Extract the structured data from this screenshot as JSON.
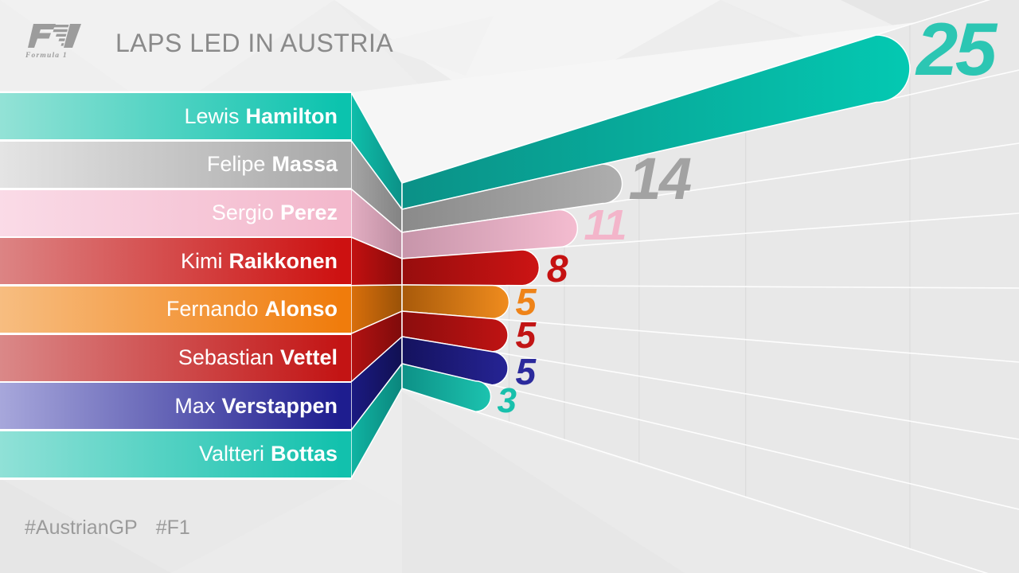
{
  "header": {
    "title": "LAPS LED IN AUSTRIA",
    "logo": "F1",
    "logo_caption": "Formula 1"
  },
  "footer": {
    "tag1": "#AustrianGP",
    "tag2": "#F1"
  },
  "wall": {
    "background": "#e8e8e8",
    "gridline_color": "#dcdcdc",
    "separator_color": "#ffffff"
  },
  "chart_data": {
    "type": "bar",
    "title": "LAPS LED IN AUSTRIA",
    "orientation": "horizontal",
    "style": "3d-perspective-wall",
    "categories": [
      "Lewis Hamilton",
      "Felipe Massa",
      "Sergio Perez",
      "Kimi Raikkonen",
      "Fernando Alonso",
      "Sebastian Vettel",
      "Max Verstappen",
      "Valtteri Bottas"
    ],
    "values": [
      25,
      14,
      11,
      8,
      5,
      5,
      5,
      3
    ],
    "xlim": [
      0,
      25
    ],
    "gridlines": {
      "vertical_every_laps": 5
    },
    "value_labels": "end-of-bar",
    "legend": "none"
  },
  "drivers": [
    {
      "first": "Lewis",
      "last": "Hamilton",
      "laps": 25,
      "row_light": "#93e2d6",
      "row_full": "#0bc3ae",
      "fold_from": "#0fbfab",
      "fold_to": "#0b9187",
      "bar_from": "#0b9187",
      "bar_to": "#04c9b2",
      "value_color": "#2cc6b3"
    },
    {
      "first": "Felipe",
      "last": "Massa",
      "laps": 14,
      "row_light": "#e4e4e4",
      "row_full": "#a8a8a8",
      "fold_from": "#a5a5a5",
      "fold_to": "#838383",
      "bar_from": "#8a8a8a",
      "bar_to": "#aeaeae",
      "value_color": "#a2a2a2"
    },
    {
      "first": "Sergio",
      "last": "Perez",
      "laps": 11,
      "row_light": "#fadbe7",
      "row_full": "#f3b8cc",
      "fold_from": "#e3aec2",
      "fold_to": "#bd8da1",
      "bar_from": "#c795aa",
      "bar_to": "#f4bcd0",
      "value_color": "#f3b5ca"
    },
    {
      "first": "Kimi",
      "last": "Raikkonen",
      "laps": 8,
      "row_light": "#dc8484",
      "row_full": "#cd1111",
      "fold_from": "#c31010",
      "fold_to": "#8a0b0b",
      "bar_from": "#970d0d",
      "bar_to": "#cd1414",
      "value_color": "#c51111"
    },
    {
      "first": "Fernando",
      "last": "Alonso",
      "laps": 5,
      "row_light": "#f7bd80",
      "row_full": "#f07c0c",
      "fold_from": "#d96f0b",
      "fold_to": "#9a5208",
      "bar_from": "#a85a0a",
      "bar_to": "#f08c1e",
      "value_color": "#ef8318"
    },
    {
      "first": "Sebastian",
      "last": "Vettel",
      "laps": 5,
      "row_light": "#da8888",
      "row_full": "#c31414",
      "fold_from": "#b31212",
      "fold_to": "#7f0b0b",
      "bar_from": "#8c0d0d",
      "bar_to": "#c01313",
      "value_color": "#c21515"
    },
    {
      "first": "Max",
      "last": "Verstappen",
      "laps": 5,
      "row_light": "#a7a7db",
      "row_full": "#1e1d8f",
      "fold_from": "#1b1a82",
      "fold_to": "#111052",
      "bar_from": "#14125e",
      "bar_to": "#262495",
      "value_color": "#2b2a9c"
    },
    {
      "first": "Valtteri",
      "last": "Bottas",
      "laps": 3,
      "row_light": "#90e1d7",
      "row_full": "#12c1ad",
      "fold_from": "#10b5a3",
      "fold_to": "#0b857c",
      "bar_from": "#0d9187",
      "bar_to": "#1cc3af",
      "value_color": "#18c0ac"
    }
  ]
}
